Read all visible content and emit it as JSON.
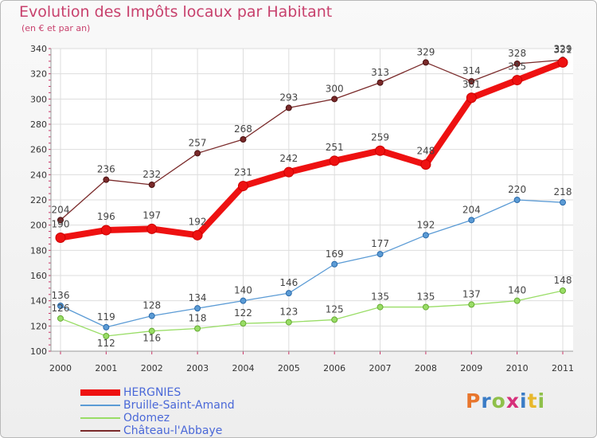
{
  "header": {
    "title": "Evolution des Impôts locaux par Habitant",
    "subtitle": "(en € et par an)"
  },
  "logo": {
    "text": "Proxiti",
    "colors": [
      "#e8762d",
      "#3a7cc6",
      "#8fc04a",
      "#d62f7a",
      "#3a7cc6",
      "#e8b82d",
      "#8fc04a"
    ]
  },
  "chart_data": {
    "type": "line",
    "x": [
      "2000",
      "2001",
      "2002",
      "2003",
      "2004",
      "2005",
      "2006",
      "2007",
      "2008",
      "2009",
      "2010",
      "2011"
    ],
    "ylim": [
      100,
      340
    ],
    "yticks": [
      100,
      120,
      140,
      160,
      180,
      200,
      220,
      240,
      260,
      280,
      300,
      320,
      340
    ],
    "grid": true,
    "legend_position": "bottom-left",
    "series": [
      {
        "name": "HERGNIES",
        "color": "#ee1111",
        "values": [
          190,
          196,
          197,
          192,
          231,
          242,
          251,
          259,
          248,
          301,
          315,
          329
        ]
      },
      {
        "name": "Bruille-Saint-Amand",
        "color": "#5b9bd5",
        "values": [
          136,
          119,
          128,
          134,
          140,
          146,
          169,
          177,
          192,
          204,
          220,
          218
        ]
      },
      {
        "name": "Odomez",
        "color": "#99dd66",
        "values": [
          126,
          112,
          116,
          118,
          122,
          123,
          125,
          135,
          135,
          137,
          140,
          148
        ]
      },
      {
        "name": "Château-l'Abbaye",
        "color": "#7a2a2a",
        "values": [
          204,
          236,
          232,
          257,
          268,
          293,
          300,
          313,
          329,
          314,
          328,
          331
        ]
      }
    ],
    "data_labels": [
      [
        "190",
        "196",
        "197",
        "192",
        "231",
        "242",
        "251",
        "259",
        "248",
        "301",
        "315",
        "329"
      ],
      [
        "136",
        "119",
        "128",
        "134",
        "140",
        "146",
        "169",
        "177",
        "192",
        "204",
        "220",
        "218"
      ],
      [
        "126",
        "112",
        "116",
        "118",
        "122",
        "123",
        "125",
        "135",
        "135",
        "137",
        "140",
        "148"
      ],
      [
        "204",
        "236",
        "232",
        "257",
        "268",
        "293",
        "300",
        "313",
        "329",
        "314",
        "328",
        "331"
      ]
    ]
  }
}
